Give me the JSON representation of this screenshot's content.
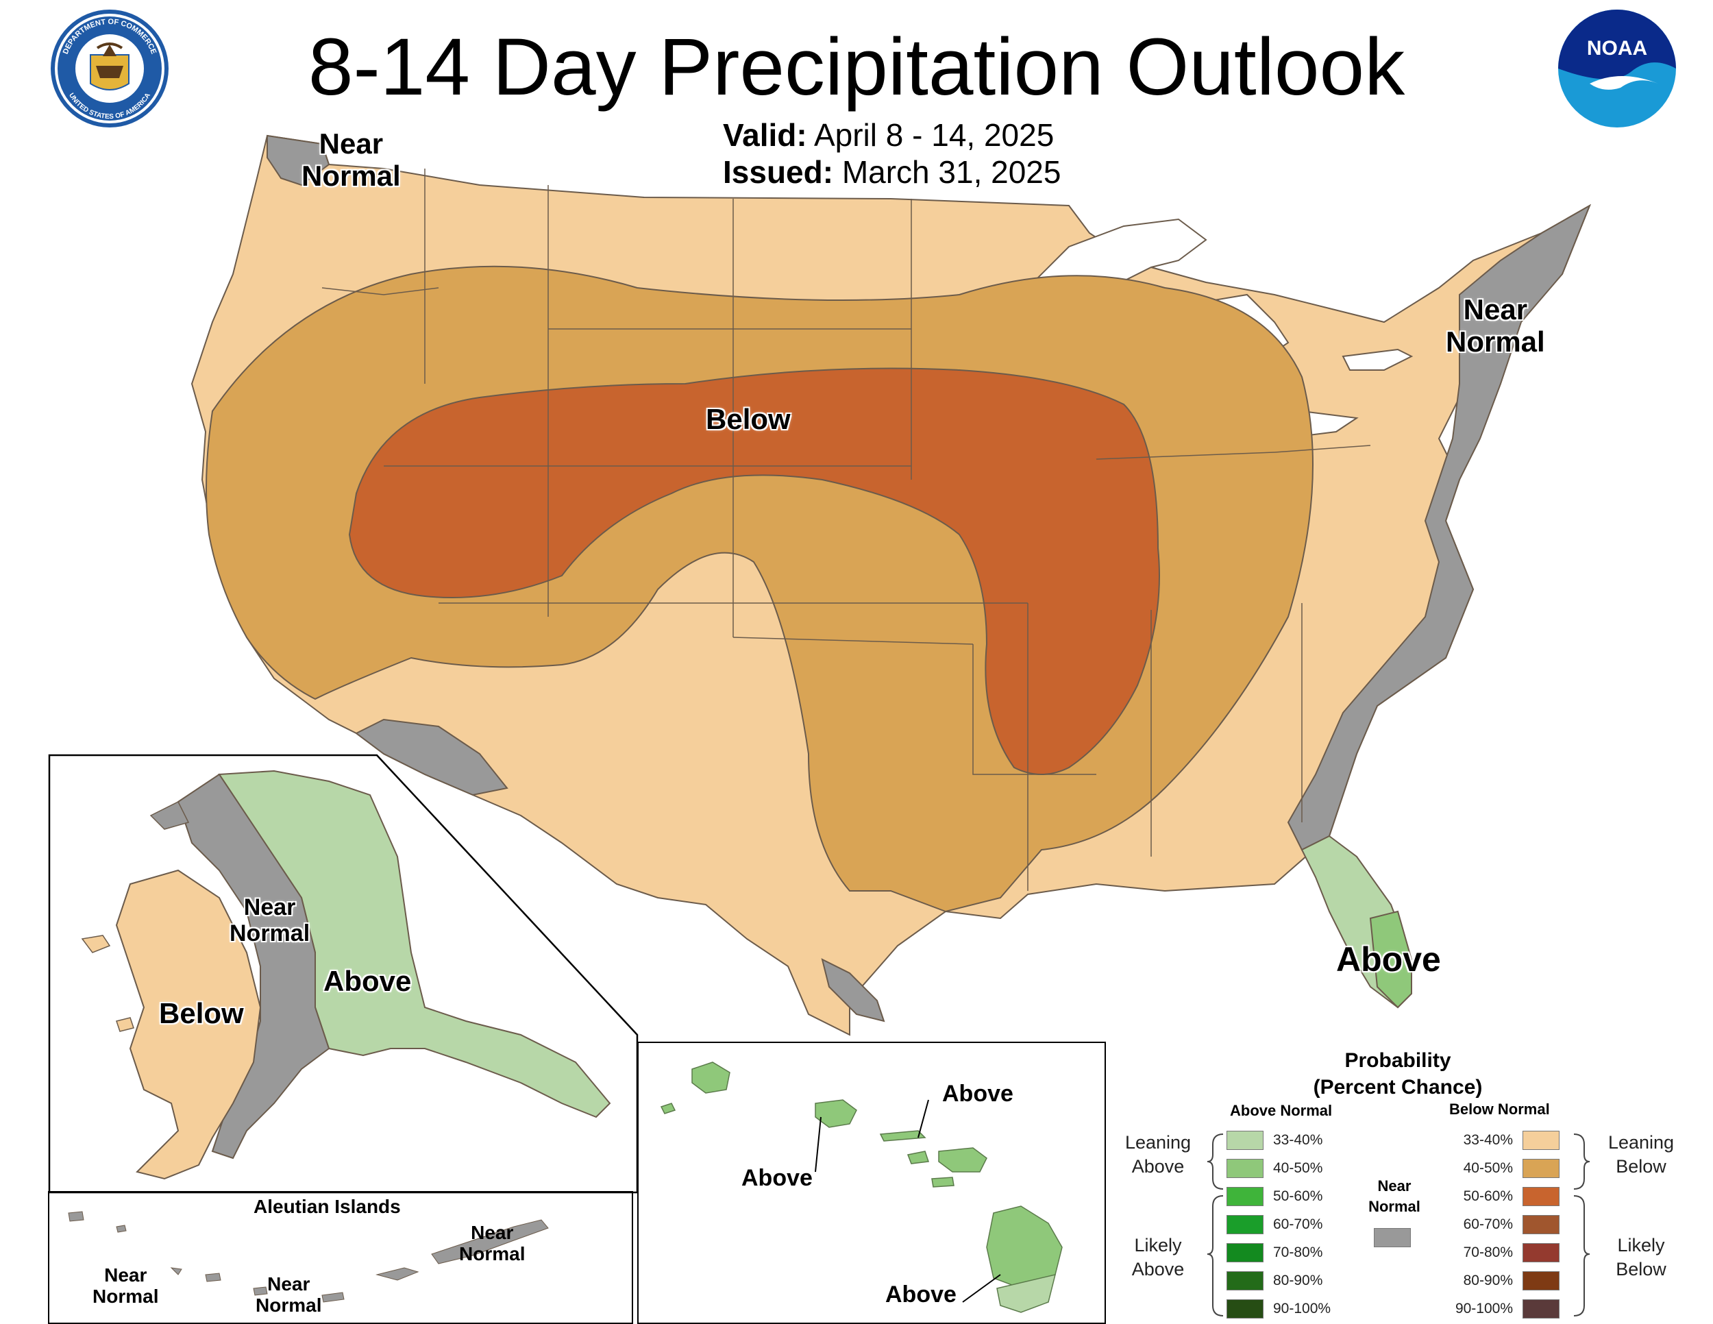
{
  "title": "8-14 Day Precipitation Outlook",
  "valid": {
    "label": "Valid:",
    "value": "April 8 - 14, 2025"
  },
  "issued": {
    "label": "Issued:",
    "value": "March 31, 2025"
  },
  "logos": {
    "doc": {
      "icon": "department-of-commerce-seal-icon",
      "ring_top": "DEPARTMENT OF COMMERCE",
      "ring_bottom": "UNITED STATES OF AMERICA"
    },
    "noaa": {
      "icon": "noaa-logo-icon",
      "text": "NOAA"
    }
  },
  "map_labels": {
    "nw": {
      "line1": "Near",
      "line2": "Normal"
    },
    "ne": {
      "line1": "Near",
      "line2": "Normal"
    },
    "center": "Below",
    "florida": "Above"
  },
  "alaska_labels": {
    "near": {
      "line1": "Near",
      "line2": "Normal"
    },
    "above": "Above",
    "below": "Below"
  },
  "aleutian": {
    "title": "Aleutian Islands",
    "east": {
      "line1": "Near",
      "line2": "Normal"
    },
    "west": {
      "line1": "Near",
      "line2": "Normal"
    },
    "middle": {
      "line1": "Near",
      "line2": "Normal"
    }
  },
  "hawaii_labels": {
    "upper": "Above",
    "oahu": "Above",
    "big_island": "Above"
  },
  "legend": {
    "title_line1": "Probability",
    "title_line2": "(Percent Chance)",
    "above_header": "Above Normal",
    "below_header": "Below Normal",
    "near_normal": {
      "line1": "Near",
      "line2": "Normal",
      "color": "#999999"
    },
    "leaning_above": {
      "line1": "Leaning",
      "line2": "Above"
    },
    "likely_above": {
      "line1": "Likely",
      "line2": "Above"
    },
    "leaning_below": {
      "line1": "Leaning",
      "line2": "Below"
    },
    "likely_below": {
      "line1": "Likely",
      "line2": "Below"
    },
    "above": [
      {
        "range": "33-40%",
        "color": "#b7d7a8"
      },
      {
        "range": "40-50%",
        "color": "#8fc87a"
      },
      {
        "range": "50-60%",
        "color": "#3fb43a"
      },
      {
        "range": "60-70%",
        "color": "#1a9e2a"
      },
      {
        "range": "70-80%",
        "color": "#138a1f"
      },
      {
        "range": "80-90%",
        "color": "#236b19"
      },
      {
        "range": "90-100%",
        "color": "#264d14"
      }
    ],
    "below": [
      {
        "range": "33-40%",
        "color": "#f5cf9b"
      },
      {
        "range": "40-50%",
        "color": "#d9a455"
      },
      {
        "range": "50-60%",
        "color": "#c8642e"
      },
      {
        "range": "60-70%",
        "color": "#a0562e"
      },
      {
        "range": "70-80%",
        "color": "#943a2f"
      },
      {
        "range": "80-90%",
        "color": "#7e3a14"
      },
      {
        "range": "90-100%",
        "color": "#5a3a3a"
      }
    ]
  },
  "colors": {
    "leaning_below": "#f5cf9b",
    "below_40_50": "#d9a455",
    "below_50_60": "#c8642e",
    "near_normal": "#999999",
    "leaning_above": "#b7d7a8",
    "above_40_50": "#8fc87a",
    "water": "#ffffff",
    "border": "#7a6a5a"
  }
}
